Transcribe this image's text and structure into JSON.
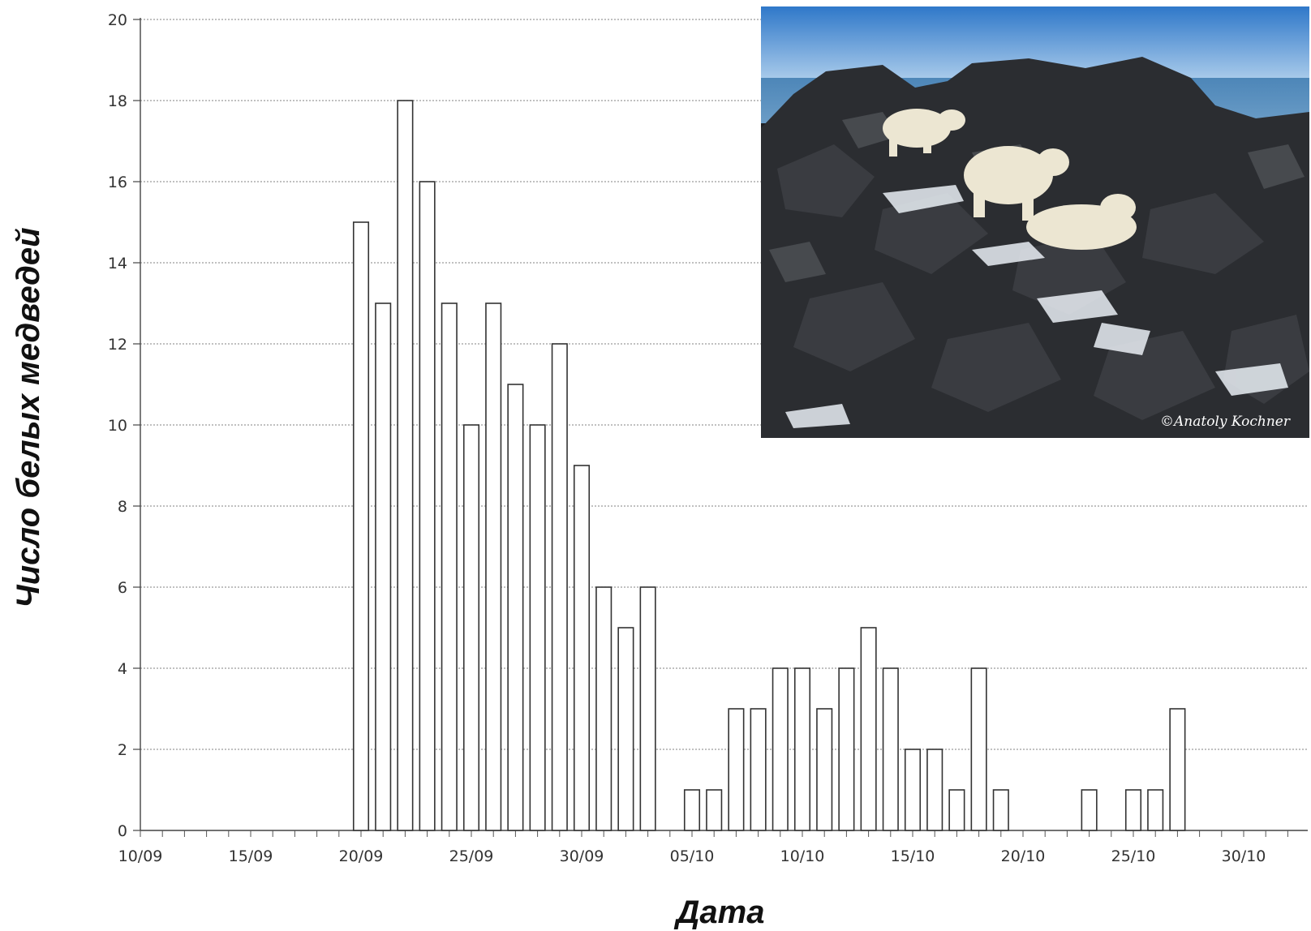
{
  "chart_data": {
    "type": "bar",
    "title": "",
    "xlabel": "Дата",
    "ylabel": "Число белых медведей",
    "ylim": [
      0,
      20
    ],
    "yticks": [
      0,
      2,
      4,
      6,
      8,
      10,
      12,
      14,
      16,
      18,
      20
    ],
    "xlim": [
      "10/09",
      "01/11"
    ],
    "xtick_labels": [
      "10/09",
      "15/09",
      "20/09",
      "25/09",
      "30/09",
      "05/10",
      "10/10",
      "15/10",
      "20/10",
      "25/10",
      "30/10"
    ],
    "grid": true,
    "bar_fill": "#ffffff",
    "bar_stroke": "#333333",
    "series": [
      {
        "x": [
          "20/09",
          "21/09",
          "22/09",
          "23/09",
          "24/09",
          "25/09",
          "26/09",
          "27/09",
          "28/09",
          "29/09",
          "30/09",
          "01/10",
          "02/10",
          "03/10",
          "05/10",
          "06/10",
          "07/10",
          "08/10",
          "09/10",
          "10/10",
          "11/10",
          "12/10",
          "13/10",
          "14/10",
          "15/10",
          "16/10",
          "17/10",
          "18/10",
          "19/10",
          "23/10",
          "25/10",
          "26/10",
          "27/10"
        ],
        "values": [
          15,
          13,
          18,
          16,
          13,
          10,
          13,
          11,
          10,
          12,
          9,
          6,
          5,
          6,
          1,
          1,
          3,
          3,
          4,
          4,
          3,
          4,
          5,
          4,
          2,
          2,
          1,
          4,
          1,
          1,
          1,
          1,
          3
        ]
      }
    ]
  },
  "photo": {
    "credit": "©Anatoly Kochner"
  }
}
